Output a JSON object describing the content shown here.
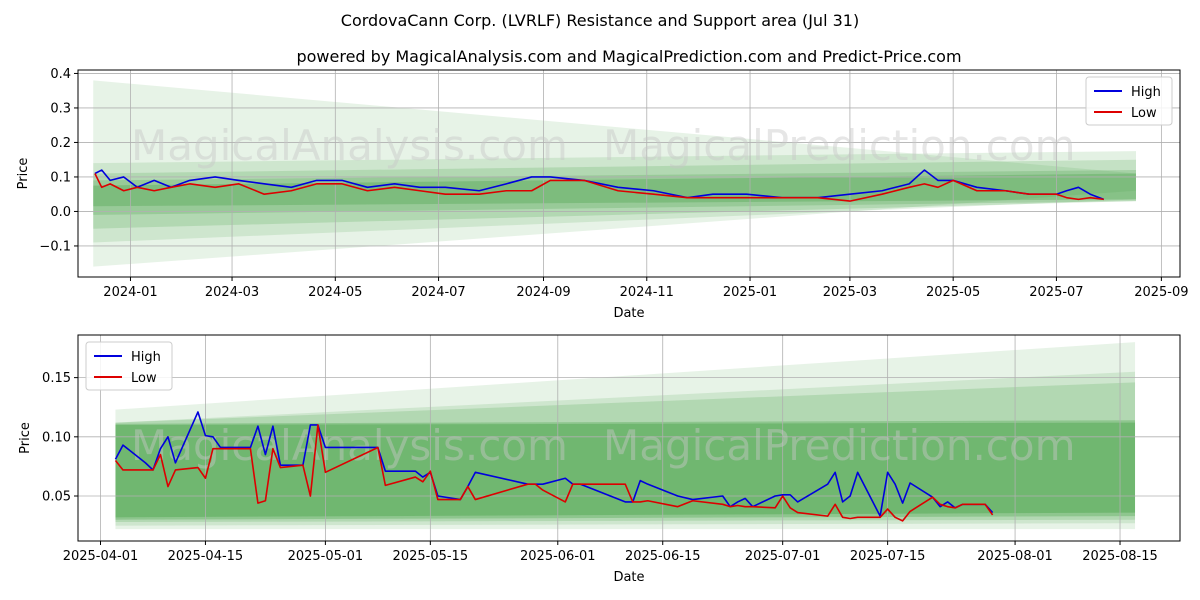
{
  "title": "CordovaCann Corp. (LVRLF) Resistance and Support area (Jul 31)",
  "subtitle": "powered by MagicalAnalysis.com and MagicalPrediction.com and Predict-Price.com",
  "watermarks": [
    "MagicalAnalysis.com",
    "MagicalPrediction.com"
  ],
  "colors": {
    "high": "#0000dd",
    "low": "#dd0000",
    "band": "#3a9a3a"
  },
  "chart_data": [
    {
      "type": "line",
      "xlabel": "Date",
      "ylabel": "Price",
      "xlim": [
        "2023-12-01",
        "2025-09-12"
      ],
      "ylim": [
        -0.19,
        0.41
      ],
      "xticks": [
        "2024-01-01",
        "2024-03-01",
        "2024-05-01",
        "2024-07-01",
        "2024-09-01",
        "2024-11-01",
        "2025-01-01",
        "2025-03-01",
        "2025-05-01",
        "2025-07-01",
        "2025-09-01"
      ],
      "xtick_labels": [
        "2024-01",
        "2024-03",
        "2024-05",
        "2024-07",
        "2024-09",
        "2024-11",
        "2025-01",
        "2025-03",
        "2025-05",
        "2025-07",
        "2025-09"
      ],
      "yticks": [
        -0.1,
        0.0,
        0.1,
        0.2,
        0.3,
        0.4
      ],
      "ytick_labels": [
        "−0.1",
        "0.0",
        "0.1",
        "0.2",
        "0.3",
        "0.4"
      ],
      "legend": {
        "position": "top-right",
        "entries": [
          "High",
          "Low"
        ]
      },
      "grid": true,
      "bands": [
        {
          "x": [
            "2023-12-10",
            "2025-08-17"
          ],
          "upper": [
            0.38,
            0.11
          ],
          "lower": [
            -0.16,
            0.06
          ],
          "opacity": 0.12
        },
        {
          "x": [
            "2023-12-10",
            "2025-08-17"
          ],
          "upper": [
            0.14,
            0.175
          ],
          "lower": [
            -0.09,
            0.035
          ],
          "opacity": 0.14
        },
        {
          "x": [
            "2023-12-10",
            "2025-08-17"
          ],
          "upper": [
            0.11,
            0.15
          ],
          "lower": [
            -0.05,
            0.03
          ],
          "opacity": 0.18
        },
        {
          "x": [
            "2023-12-10",
            "2025-08-17"
          ],
          "upper": [
            0.09,
            0.12
          ],
          "lower": [
            -0.01,
            0.03
          ],
          "opacity": 0.22
        },
        {
          "x": [
            "2023-12-10",
            "2025-08-17"
          ],
          "upper": [
            0.075,
            0.11
          ],
          "lower": [
            0.015,
            0.035
          ],
          "opacity": 0.28
        }
      ],
      "series": [
        {
          "name": "High",
          "x": [
            "2023-12-11",
            "2023-12-15",
            "2023-12-20",
            "2023-12-28",
            "2024-01-05",
            "2024-01-15",
            "2024-01-25",
            "2024-02-05",
            "2024-02-20",
            "2024-03-05",
            "2024-03-20",
            "2024-04-05",
            "2024-04-20",
            "2024-05-05",
            "2024-05-20",
            "2024-06-05",
            "2024-06-20",
            "2024-07-05",
            "2024-07-25",
            "2024-08-10",
            "2024-08-25",
            "2024-09-05",
            "2024-09-25",
            "2024-10-15",
            "2024-11-05",
            "2024-11-25",
            "2024-12-10",
            "2024-12-30",
            "2025-01-20",
            "2025-02-10",
            "2025-03-01",
            "2025-03-20",
            "2025-04-05",
            "2025-04-14",
            "2025-04-22",
            "2025-05-01",
            "2025-05-15",
            "2025-06-01",
            "2025-06-15",
            "2025-07-01",
            "2025-07-07",
            "2025-07-14",
            "2025-07-21",
            "2025-07-29"
          ],
          "values": [
            0.11,
            0.12,
            0.09,
            0.1,
            0.07,
            0.09,
            0.07,
            0.09,
            0.1,
            0.09,
            0.08,
            0.07,
            0.09,
            0.09,
            0.07,
            0.08,
            0.07,
            0.07,
            0.06,
            0.08,
            0.1,
            0.1,
            0.09,
            0.07,
            0.06,
            0.04,
            0.05,
            0.05,
            0.04,
            0.04,
            0.05,
            0.06,
            0.08,
            0.12,
            0.09,
            0.09,
            0.07,
            0.06,
            0.05,
            0.05,
            0.06,
            0.07,
            0.05,
            0.035
          ]
        },
        {
          "name": "Low",
          "x": [
            "2023-12-11",
            "2023-12-15",
            "2023-12-20",
            "2023-12-28",
            "2024-01-05",
            "2024-01-15",
            "2024-01-25",
            "2024-02-05",
            "2024-02-20",
            "2024-03-05",
            "2024-03-20",
            "2024-04-05",
            "2024-04-20",
            "2024-05-05",
            "2024-05-20",
            "2024-06-05",
            "2024-06-20",
            "2024-07-05",
            "2024-07-25",
            "2024-08-10",
            "2024-08-25",
            "2024-09-05",
            "2024-09-25",
            "2024-10-15",
            "2024-11-05",
            "2024-11-25",
            "2024-12-10",
            "2024-12-30",
            "2025-01-20",
            "2025-02-10",
            "2025-03-01",
            "2025-03-20",
            "2025-04-05",
            "2025-04-14",
            "2025-04-22",
            "2025-05-01",
            "2025-05-15",
            "2025-06-01",
            "2025-06-15",
            "2025-07-01",
            "2025-07-07",
            "2025-07-14",
            "2025-07-21",
            "2025-07-29"
          ],
          "values": [
            0.11,
            0.07,
            0.08,
            0.06,
            0.07,
            0.06,
            0.07,
            0.08,
            0.07,
            0.08,
            0.05,
            0.06,
            0.08,
            0.08,
            0.06,
            0.07,
            0.06,
            0.05,
            0.05,
            0.06,
            0.06,
            0.09,
            0.09,
            0.06,
            0.05,
            0.04,
            0.04,
            0.04,
            0.04,
            0.04,
            0.03,
            0.05,
            0.07,
            0.08,
            0.07,
            0.09,
            0.06,
            0.06,
            0.05,
            0.05,
            0.04,
            0.035,
            0.04,
            0.035
          ]
        }
      ]
    },
    {
      "type": "line",
      "xlabel": "Date",
      "ylabel": "Price",
      "xlim": [
        "2025-03-29",
        "2025-08-23"
      ],
      "ylim": [
        0.012,
        0.186
      ],
      "xticks": [
        "2025-04-01",
        "2025-04-15",
        "2025-05-01",
        "2025-05-15",
        "2025-06-01",
        "2025-06-15",
        "2025-07-01",
        "2025-07-15",
        "2025-08-01",
        "2025-08-15"
      ],
      "xtick_labels": [
        "2025-04-01",
        "2025-04-15",
        "2025-05-01",
        "2025-05-15",
        "2025-06-01",
        "2025-06-15",
        "2025-07-01",
        "2025-07-15",
        "2025-08-01",
        "2025-08-15"
      ],
      "yticks": [
        0.05,
        0.1,
        0.15
      ],
      "ytick_labels": [
        "0.05",
        "0.10",
        "0.15"
      ],
      "legend": {
        "position": "top-left",
        "entries": [
          "High",
          "Low"
        ]
      },
      "grid": true,
      "bands": [
        {
          "x": [
            "2025-04-03",
            "2025-08-17"
          ],
          "upper": [
            0.123,
            0.18
          ],
          "lower": [
            0.022,
            0.022
          ],
          "opacity": 0.12
        },
        {
          "x": [
            "2025-04-03",
            "2025-08-17"
          ],
          "upper": [
            0.112,
            0.155
          ],
          "lower": [
            0.025,
            0.027
          ],
          "opacity": 0.14
        },
        {
          "x": [
            "2025-04-03",
            "2025-08-17"
          ],
          "upper": [
            0.112,
            0.146
          ],
          "lower": [
            0.028,
            0.03
          ],
          "opacity": 0.18
        },
        {
          "x": [
            "2025-04-03",
            "2025-08-17"
          ],
          "upper": [
            0.111,
            0.114
          ],
          "lower": [
            0.03,
            0.033
          ],
          "opacity": 0.3
        },
        {
          "x": [
            "2025-04-03",
            "2025-08-17"
          ],
          "upper": [
            0.11,
            0.112
          ],
          "lower": [
            0.032,
            0.036
          ],
          "opacity": 0.35
        }
      ],
      "series": [
        {
          "name": "High",
          "x": [
            "2025-04-03",
            "2025-04-04",
            "2025-04-07",
            "2025-04-08",
            "2025-04-09",
            "2025-04-10",
            "2025-04-11",
            "2025-04-14",
            "2025-04-15",
            "2025-04-16",
            "2025-04-17",
            "2025-04-21",
            "2025-04-22",
            "2025-04-23",
            "2025-04-24",
            "2025-04-25",
            "2025-04-28",
            "2025-04-29",
            "2025-04-30",
            "2025-05-01",
            "2025-05-08",
            "2025-05-09",
            "2025-05-13",
            "2025-05-14",
            "2025-05-15",
            "2025-05-16",
            "2025-05-19",
            "2025-05-20",
            "2025-05-21",
            "2025-05-28",
            "2025-05-29",
            "2025-05-30",
            "2025-06-02",
            "2025-06-03",
            "2025-06-04",
            "2025-06-10",
            "2025-06-11",
            "2025-06-12",
            "2025-06-13",
            "2025-06-17",
            "2025-06-19",
            "2025-06-23",
            "2025-06-24",
            "2025-06-25",
            "2025-06-26",
            "2025-06-27",
            "2025-06-30",
            "2025-07-01",
            "2025-07-02",
            "2025-07-03",
            "2025-07-07",
            "2025-07-08",
            "2025-07-09",
            "2025-07-10",
            "2025-07-11",
            "2025-07-14",
            "2025-07-15",
            "2025-07-16",
            "2025-07-17",
            "2025-07-18",
            "2025-07-21",
            "2025-07-22",
            "2025-07-23",
            "2025-07-24",
            "2025-07-25",
            "2025-07-28",
            "2025-07-29"
          ],
          "values": [
            0.081,
            0.093,
            0.078,
            0.072,
            0.09,
            0.1,
            0.078,
            0.121,
            0.101,
            0.1,
            0.091,
            0.091,
            0.109,
            0.085,
            0.109,
            0.076,
            0.076,
            0.11,
            0.11,
            0.091,
            0.091,
            0.071,
            0.071,
            0.066,
            0.07,
            0.05,
            0.047,
            0.058,
            0.07,
            0.06,
            0.06,
            0.06,
            0.065,
            0.06,
            0.06,
            0.045,
            0.045,
            0.063,
            0.06,
            0.05,
            0.047,
            0.05,
            0.041,
            0.045,
            0.048,
            0.041,
            0.05,
            0.051,
            0.051,
            0.045,
            0.06,
            0.07,
            0.045,
            0.05,
            0.07,
            0.033,
            0.07,
            0.06,
            0.044,
            0.061,
            0.049,
            0.041,
            0.045,
            0.04,
            0.043,
            0.043,
            0.036
          ]
        },
        {
          "name": "Low",
          "x": [
            "2025-04-03",
            "2025-04-04",
            "2025-04-07",
            "2025-04-08",
            "2025-04-09",
            "2025-04-10",
            "2025-04-11",
            "2025-04-14",
            "2025-04-15",
            "2025-04-16",
            "2025-04-17",
            "2025-04-21",
            "2025-04-22",
            "2025-04-23",
            "2025-04-24",
            "2025-04-25",
            "2025-04-28",
            "2025-04-29",
            "2025-04-30",
            "2025-05-01",
            "2025-05-08",
            "2025-05-09",
            "2025-05-13",
            "2025-05-14",
            "2025-05-15",
            "2025-05-16",
            "2025-05-19",
            "2025-05-20",
            "2025-05-21",
            "2025-05-28",
            "2025-05-29",
            "2025-05-30",
            "2025-06-02",
            "2025-06-03",
            "2025-06-04",
            "2025-06-10",
            "2025-06-11",
            "2025-06-12",
            "2025-06-13",
            "2025-06-17",
            "2025-06-19",
            "2025-06-23",
            "2025-06-24",
            "2025-06-25",
            "2025-06-26",
            "2025-06-27",
            "2025-06-30",
            "2025-07-01",
            "2025-07-02",
            "2025-07-03",
            "2025-07-07",
            "2025-07-08",
            "2025-07-09",
            "2025-07-10",
            "2025-07-11",
            "2025-07-14",
            "2025-07-15",
            "2025-07-16",
            "2025-07-17",
            "2025-07-18",
            "2025-07-21",
            "2025-07-22",
            "2025-07-23",
            "2025-07-24",
            "2025-07-25",
            "2025-07-28",
            "2025-07-29"
          ],
          "values": [
            0.08,
            0.072,
            0.072,
            0.072,
            0.085,
            0.058,
            0.072,
            0.074,
            0.065,
            0.09,
            0.09,
            0.09,
            0.044,
            0.046,
            0.09,
            0.074,
            0.076,
            0.05,
            0.11,
            0.07,
            0.091,
            0.059,
            0.066,
            0.062,
            0.071,
            0.047,
            0.047,
            0.058,
            0.047,
            0.06,
            0.06,
            0.055,
            0.045,
            0.06,
            0.06,
            0.06,
            0.045,
            0.045,
            0.046,
            0.041,
            0.046,
            0.043,
            0.041,
            0.042,
            0.041,
            0.041,
            0.04,
            0.05,
            0.04,
            0.036,
            0.033,
            0.043,
            0.032,
            0.031,
            0.032,
            0.032,
            0.039,
            0.032,
            0.029,
            0.037,
            0.049,
            0.043,
            0.041,
            0.04,
            0.043,
            0.043,
            0.034
          ]
        }
      ]
    }
  ]
}
